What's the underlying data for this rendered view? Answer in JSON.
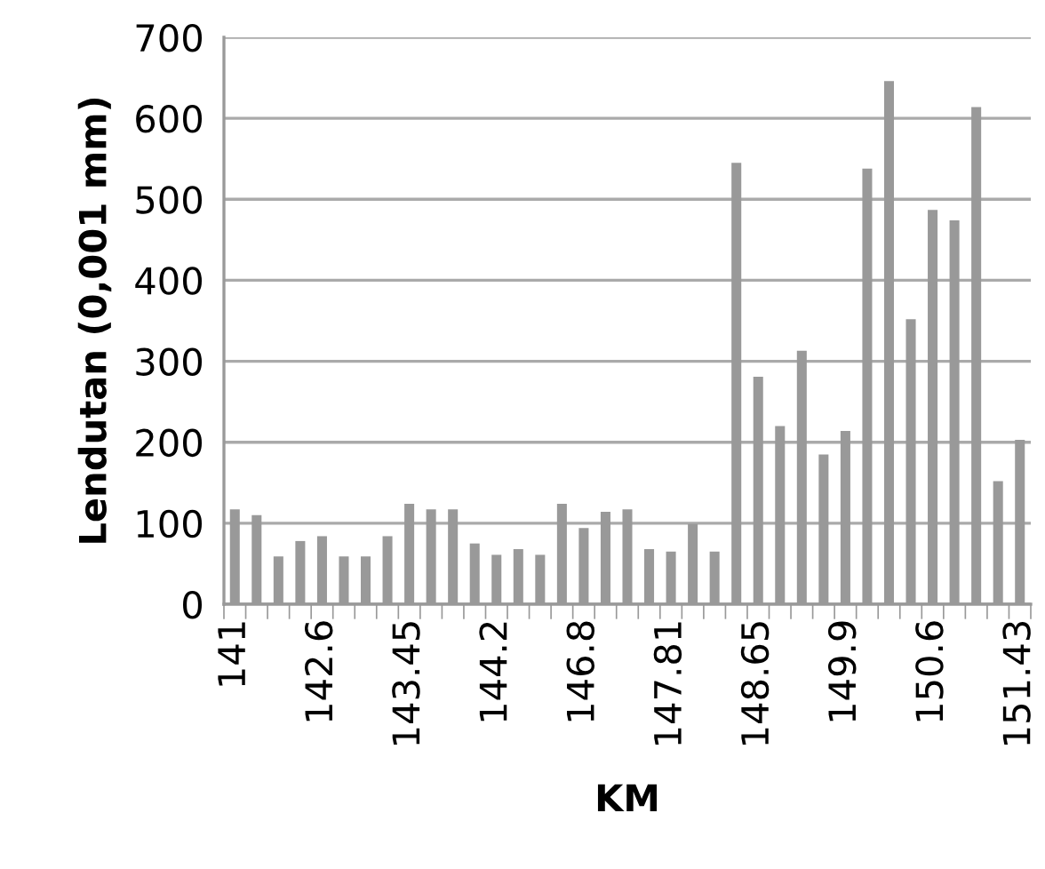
{
  "chart_data": {
    "type": "bar",
    "xlabel": "KM",
    "ylabel": "Lendutan (0,001 mm)",
    "categories": [
      "141",
      null,
      null,
      null,
      "142.6",
      null,
      null,
      null,
      "143.45",
      null,
      null,
      null,
      "144.2",
      null,
      null,
      null,
      "146.8",
      null,
      null,
      null,
      "147.81",
      null,
      null,
      null,
      "148.65",
      null,
      null,
      null,
      "149.9",
      null,
      null,
      null,
      "150.6",
      null,
      null,
      null,
      "151.43"
    ],
    "values": [
      117,
      110,
      59,
      78,
      84,
      59,
      59,
      84,
      124,
      117,
      117,
      75,
      61,
      68,
      61,
      124,
      94,
      114,
      117,
      68,
      65,
      99,
      65,
      545,
      281,
      220,
      313,
      185,
      214,
      538,
      646,
      352,
      487,
      474,
      614,
      152,
      203
    ],
    "color": "#999999",
    "ylim": [
      0,
      700
    ],
    "yticks": [
      0,
      100,
      200,
      300,
      400,
      500,
      600,
      700
    ],
    "grid": "y",
    "legend": false
  }
}
